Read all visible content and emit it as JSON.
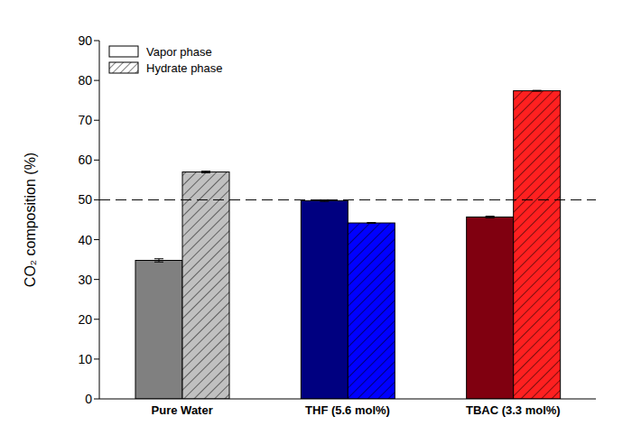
{
  "chart_data": {
    "type": "bar",
    "categories": [
      "Pure Water",
      "THF (5.6 mol%)",
      "TBAC (3.3 mol%)"
    ],
    "y_label": "CO₂ composition (%)",
    "series": [
      {
        "name": "Vapor phase",
        "colors": [
          "#808080",
          "#000080",
          "#800010"
        ],
        "values": [
          34.8,
          49.8,
          45.7
        ],
        "errors": [
          0.4,
          0.2,
          0.2
        ]
      },
      {
        "name": "Hydrate phase",
        "colors": [
          "#c0c0c0",
          "#0000ff",
          "#ff2020"
        ],
        "values": [
          57.0,
          44.2,
          77.4
        ],
        "errors": [
          0.2,
          0.1,
          0.1
        ],
        "hatch": true
      }
    ],
    "reference_line": 50,
    "ylim": [
      0,
      90
    ],
    "yticks": [
      0,
      10,
      20,
      30,
      40,
      50,
      60,
      70,
      80,
      90
    ],
    "grid": false,
    "legend": "upper left"
  }
}
